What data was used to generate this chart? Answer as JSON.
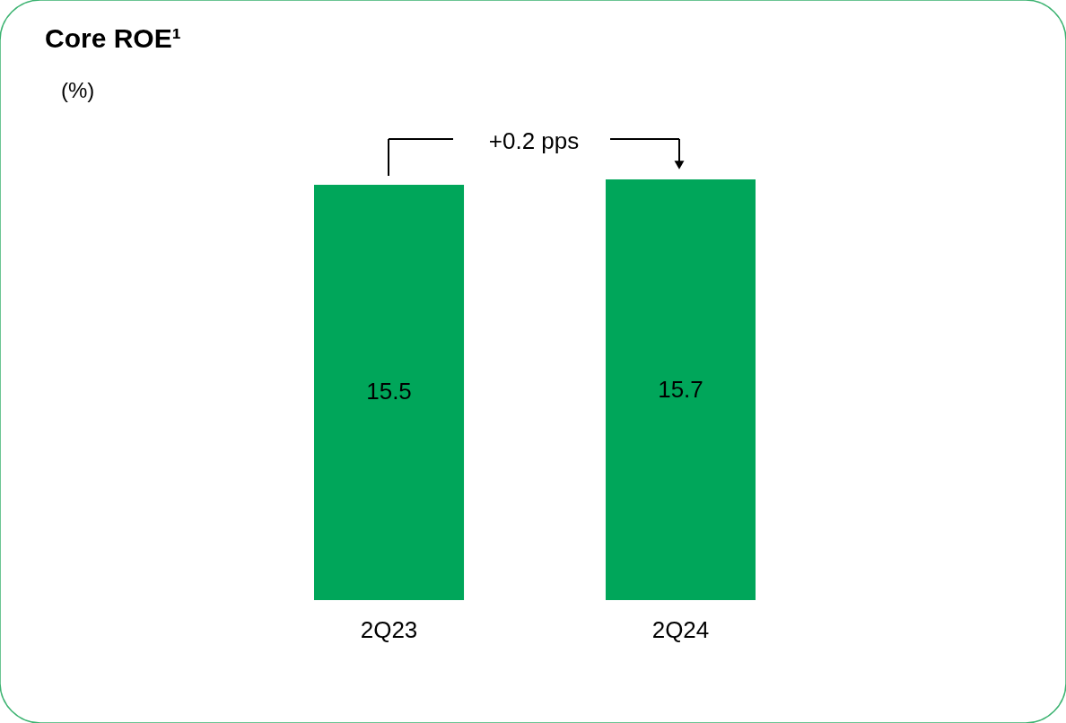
{
  "chart_data": {
    "type": "bar",
    "title": "Core ROE¹",
    "subtitle": "(%)",
    "categories": [
      "2Q23",
      "2Q24"
    ],
    "values": [
      15.5,
      15.7
    ],
    "color": "#00a65a",
    "data_labels": true,
    "annotations": [
      "+0.2 pps"
    ]
  }
}
